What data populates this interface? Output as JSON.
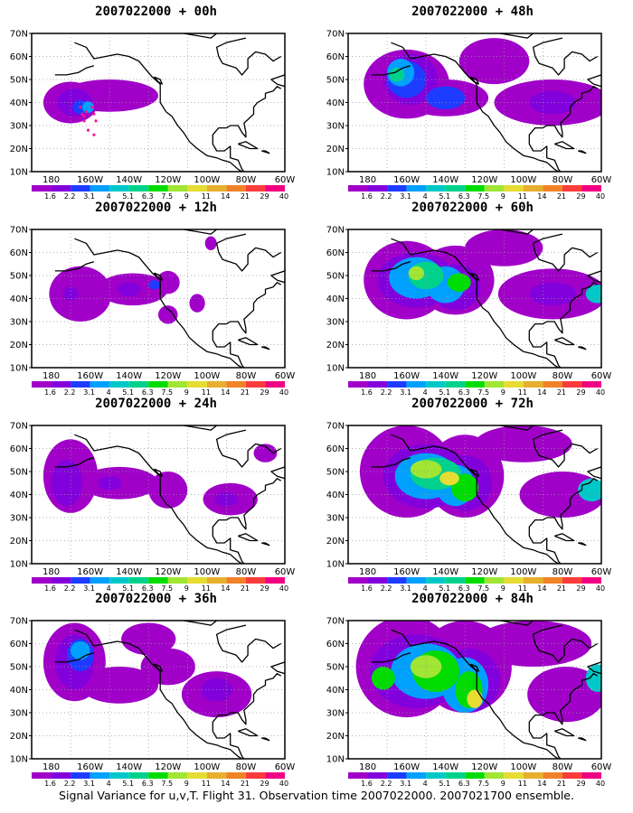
{
  "footer": "Signal Variance for u,v,T. Flight 31. Observation time 2007022000. 2007021700 ensemble.",
  "colors": {
    "palette": [
      "#a000c8",
      "#8200dc",
      "#1e3cff",
      "#00a0ff",
      "#00c8c8",
      "#00d28c",
      "#00dc00",
      "#a0e632",
      "#e6dc32",
      "#e6af2d",
      "#f08228",
      "#fa3c3c",
      "#f00082"
    ],
    "land_outline": "#000000",
    "grid": "#9a9a9a",
    "flight_track": "#ff1493"
  },
  "chart_data": [
    {
      "type": "contour_map",
      "title": "2007022000 + 00h",
      "x_ticks": [
        "180",
        "160W",
        "140W",
        "120W",
        "100W",
        "80W",
        "60W"
      ],
      "y_ticks": [
        "10N",
        "20N",
        "30N",
        "40N",
        "50N",
        "60N",
        "70N"
      ],
      "colorbar_labels": [
        "1.6",
        "2.2",
        "3.1",
        "4",
        "5.1",
        "6.3",
        "7.5",
        "9",
        "11",
        "14",
        "21",
        "29",
        "40"
      ],
      "grid": true,
      "blobs": [
        {
          "lon": -170,
          "lat": 40,
          "rx": 14,
          "ry": 9,
          "level": 0
        },
        {
          "lon": -150,
          "lat": 43,
          "rx": 25,
          "ry": 7,
          "level": 0
        },
        {
          "lon": -168,
          "lat": 40,
          "rx": 9,
          "ry": 6,
          "level": 1
        },
        {
          "lon": -165,
          "lat": 38,
          "rx": 4,
          "ry": 3,
          "level": 2
        },
        {
          "lon": -161,
          "lat": 38,
          "rx": 3,
          "ry": 2.5,
          "level": 3
        }
      ],
      "track": [
        [
          -165,
          38
        ],
        [
          -164,
          35
        ],
        [
          -163,
          32
        ],
        [
          -161,
          28
        ],
        [
          -158,
          26
        ],
        [
          -163,
          34
        ],
        [
          -162,
          36
        ],
        [
          -159,
          38
        ],
        [
          -158,
          35
        ],
        [
          -157,
          32
        ]
      ]
    },
    {
      "type": "contour_map",
      "title": "2007022000 + 48h",
      "x_ticks": [
        "180",
        "160W",
        "140W",
        "120W",
        "100W",
        "80W",
        "60W"
      ],
      "y_ticks": [
        "10N",
        "20N",
        "30N",
        "40N",
        "50N",
        "60N",
        "70N"
      ],
      "colorbar_labels": [
        "1.6",
        "2.2",
        "3.1",
        "4",
        "5.1",
        "6.3",
        "7.5",
        "9",
        "11",
        "14",
        "21",
        "29",
        "40"
      ],
      "grid": true,
      "blobs": [
        {
          "lon": -160,
          "lat": 48,
          "rx": 22,
          "ry": 15,
          "level": 0
        },
        {
          "lon": -115,
          "lat": 58,
          "rx": 18,
          "ry": 10,
          "level": 0
        },
        {
          "lon": -85,
          "lat": 40,
          "rx": 30,
          "ry": 10,
          "level": 0
        },
        {
          "lon": -140,
          "lat": 42,
          "rx": 22,
          "ry": 8,
          "level": 0
        },
        {
          "lon": -158,
          "lat": 50,
          "rx": 14,
          "ry": 11,
          "level": 1
        },
        {
          "lon": -160,
          "lat": 50,
          "rx": 10,
          "ry": 8,
          "level": 2
        },
        {
          "lon": -163,
          "lat": 53,
          "rx": 7,
          "ry": 6,
          "level": 3
        },
        {
          "lon": -165,
          "lat": 52,
          "rx": 4,
          "ry": 3,
          "level": 5
        },
        {
          "lon": -140,
          "lat": 42,
          "rx": 10,
          "ry": 5,
          "level": 2
        },
        {
          "lon": -85,
          "lat": 40,
          "rx": 12,
          "ry": 5,
          "level": 1
        }
      ]
    },
    {
      "type": "contour_map",
      "title": "2007022000 + 12h",
      "x_ticks": [
        "180",
        "160W",
        "140W",
        "120W",
        "100W",
        "80W",
        "60W"
      ],
      "y_ticks": [
        "10N",
        "20N",
        "30N",
        "40N",
        "50N",
        "60N",
        "70N"
      ],
      "colorbar_labels": [
        "1.6",
        "2.2",
        "3.1",
        "4",
        "5.1",
        "6.3",
        "7.5",
        "9",
        "11",
        "14",
        "21",
        "29",
        "40"
      ],
      "grid": true,
      "blobs": [
        {
          "lon": -165,
          "lat": 42,
          "rx": 16,
          "ry": 12,
          "level": 0
        },
        {
          "lon": -138,
          "lat": 44,
          "rx": 18,
          "ry": 7,
          "level": 0
        },
        {
          "lon": -120,
          "lat": 47,
          "rx": 6,
          "ry": 5,
          "level": 0
        },
        {
          "lon": -105,
          "lat": 38,
          "rx": 4,
          "ry": 4,
          "level": 0
        },
        {
          "lon": -120,
          "lat": 33,
          "rx": 5,
          "ry": 4,
          "level": 0
        },
        {
          "lon": -98,
          "lat": 64,
          "rx": 3,
          "ry": 3,
          "level": 0
        },
        {
          "lon": -170,
          "lat": 42,
          "rx": 4,
          "ry": 3,
          "level": 1
        },
        {
          "lon": -140,
          "lat": 44,
          "rx": 6,
          "ry": 3,
          "level": 1
        },
        {
          "lon": -127,
          "lat": 46,
          "rx": 3,
          "ry": 2,
          "level": 2
        }
      ]
    },
    {
      "type": "contour_map",
      "title": "2007022000 + 60h",
      "x_ticks": [
        "180",
        "160W",
        "140W",
        "120W",
        "100W",
        "80W",
        "60W"
      ],
      "y_ticks": [
        "10N",
        "20N",
        "30N",
        "40N",
        "50N",
        "60N",
        "70N"
      ],
      "colorbar_labels": [
        "1.6",
        "2.2",
        "3.1",
        "4",
        "5.1",
        "6.3",
        "7.5",
        "9",
        "11",
        "14",
        "21",
        "29",
        "40"
      ],
      "grid": true,
      "blobs": [
        {
          "lon": -160,
          "lat": 48,
          "rx": 22,
          "ry": 17,
          "level": 0
        },
        {
          "lon": -135,
          "lat": 48,
          "rx": 20,
          "ry": 15,
          "level": 0
        },
        {
          "lon": -110,
          "lat": 62,
          "rx": 20,
          "ry": 8,
          "level": 0
        },
        {
          "lon": -85,
          "lat": 42,
          "rx": 28,
          "ry": 11,
          "level": 0
        },
        {
          "lon": -155,
          "lat": 48,
          "rx": 20,
          "ry": 12,
          "level": 1
        },
        {
          "lon": -135,
          "lat": 45,
          "rx": 13,
          "ry": 10,
          "level": 1
        },
        {
          "lon": -155,
          "lat": 49,
          "rx": 14,
          "ry": 9,
          "level": 3
        },
        {
          "lon": -140,
          "lat": 46,
          "rx": 10,
          "ry": 8,
          "level": 3
        },
        {
          "lon": -150,
          "lat": 50,
          "rx": 9,
          "ry": 6,
          "level": 5
        },
        {
          "lon": -133,
          "lat": 47,
          "rx": 6,
          "ry": 4,
          "level": 6
        },
        {
          "lon": -155,
          "lat": 51,
          "rx": 4,
          "ry": 3,
          "level": 7
        },
        {
          "lon": -85,
          "lat": 42,
          "rx": 12,
          "ry": 5,
          "level": 1
        },
        {
          "lon": -62,
          "lat": 42,
          "rx": 6,
          "ry": 4,
          "level": 4
        }
      ]
    },
    {
      "type": "contour_map",
      "title": "2007022000 + 24h",
      "x_ticks": [
        "180",
        "160W",
        "140W",
        "120W",
        "100W",
        "80W",
        "60W"
      ],
      "y_ticks": [
        "10N",
        "20N",
        "30N",
        "40N",
        "50N",
        "60N",
        "70N"
      ],
      "colorbar_labels": [
        "1.6",
        "2.2",
        "3.1",
        "4",
        "5.1",
        "6.3",
        "7.5",
        "9",
        "11",
        "14",
        "21",
        "29",
        "40"
      ],
      "grid": true,
      "blobs": [
        {
          "lon": -170,
          "lat": 48,
          "rx": 14,
          "ry": 16,
          "level": 0
        },
        {
          "lon": -145,
          "lat": 45,
          "rx": 20,
          "ry": 7,
          "level": 0
        },
        {
          "lon": -120,
          "lat": 42,
          "rx": 10,
          "ry": 8,
          "level": 0
        },
        {
          "lon": -88,
          "lat": 38,
          "rx": 14,
          "ry": 7,
          "level": 0
        },
        {
          "lon": -70,
          "lat": 58,
          "rx": 6,
          "ry": 4,
          "level": 0
        },
        {
          "lon": -172,
          "lat": 45,
          "rx": 8,
          "ry": 10,
          "level": 1
        },
        {
          "lon": -150,
          "lat": 45,
          "rx": 6,
          "ry": 3,
          "level": 1
        },
        {
          "lon": -90,
          "lat": 38,
          "rx": 6,
          "ry": 3,
          "level": 1
        }
      ]
    },
    {
      "type": "contour_map",
      "title": "2007022000 + 72h",
      "x_ticks": [
        "180",
        "160W",
        "140W",
        "120W",
        "100W",
        "80W",
        "60W"
      ],
      "y_ticks": [
        "10N",
        "20N",
        "30N",
        "40N",
        "50N",
        "60N",
        "70N"
      ],
      "colorbar_labels": [
        "1.6",
        "2.2",
        "3.1",
        "4",
        "5.1",
        "6.3",
        "7.5",
        "9",
        "11",
        "14",
        "21",
        "29",
        "40"
      ],
      "grid": true,
      "blobs": [
        {
          "lon": -160,
          "lat": 50,
          "rx": 24,
          "ry": 20,
          "level": 0
        },
        {
          "lon": -130,
          "lat": 48,
          "rx": 20,
          "ry": 18,
          "level": 0
        },
        {
          "lon": -100,
          "lat": 62,
          "rx": 25,
          "ry": 8,
          "level": 0
        },
        {
          "lon": -80,
          "lat": 40,
          "rx": 22,
          "ry": 10,
          "level": 0
        },
        {
          "lon": -150,
          "lat": 48,
          "rx": 22,
          "ry": 14,
          "level": 1
        },
        {
          "lon": -130,
          "lat": 45,
          "rx": 14,
          "ry": 12,
          "level": 1
        },
        {
          "lon": -150,
          "lat": 48,
          "rx": 16,
          "ry": 10,
          "level": 3
        },
        {
          "lon": -135,
          "lat": 44,
          "rx": 10,
          "ry": 9,
          "level": 3
        },
        {
          "lon": -145,
          "lat": 49,
          "rx": 13,
          "ry": 7,
          "level": 5
        },
        {
          "lon": -130,
          "lat": 43,
          "rx": 7,
          "ry": 6,
          "level": 6
        },
        {
          "lon": -150,
          "lat": 51,
          "rx": 8,
          "ry": 4,
          "level": 7
        },
        {
          "lon": -138,
          "lat": 47,
          "rx": 5,
          "ry": 3,
          "level": 8
        },
        {
          "lon": -65,
          "lat": 42,
          "rx": 7,
          "ry": 5,
          "level": 4
        }
      ]
    },
    {
      "type": "contour_map",
      "title": "2007022000 + 36h",
      "x_ticks": [
        "180",
        "160W",
        "140W",
        "120W",
        "100W",
        "80W",
        "60W"
      ],
      "y_ticks": [
        "10N",
        "20N",
        "30N",
        "40N",
        "50N",
        "60N",
        "70N"
      ],
      "colorbar_labels": [
        "1.6",
        "2.2",
        "3.1",
        "4",
        "5.1",
        "6.3",
        "7.5",
        "9",
        "11",
        "14",
        "21",
        "29",
        "40"
      ],
      "grid": true,
      "blobs": [
        {
          "lon": -168,
          "lat": 52,
          "rx": 16,
          "ry": 17,
          "level": 0
        },
        {
          "lon": -145,
          "lat": 42,
          "rx": 20,
          "ry": 8,
          "level": 0
        },
        {
          "lon": -120,
          "lat": 50,
          "rx": 14,
          "ry": 8,
          "level": 0
        },
        {
          "lon": -95,
          "lat": 38,
          "rx": 18,
          "ry": 10,
          "level": 0
        },
        {
          "lon": -130,
          "lat": 62,
          "rx": 14,
          "ry": 7,
          "level": 0
        },
        {
          "lon": -168,
          "lat": 52,
          "rx": 10,
          "ry": 12,
          "level": 1
        },
        {
          "lon": -165,
          "lat": 55,
          "rx": 7,
          "ry": 7,
          "level": 2
        },
        {
          "lon": -165,
          "lat": 57,
          "rx": 5,
          "ry": 4,
          "level": 3
        },
        {
          "lon": -95,
          "lat": 40,
          "rx": 8,
          "ry": 5,
          "level": 1
        }
      ]
    },
    {
      "type": "contour_map",
      "title": "2007022000 + 84h",
      "x_ticks": [
        "180",
        "160W",
        "140W",
        "120W",
        "100W",
        "80W",
        "60W"
      ],
      "y_ticks": [
        "10N",
        "20N",
        "30N",
        "40N",
        "50N",
        "60N",
        "70N"
      ],
      "colorbar_labels": [
        "1.6",
        "2.2",
        "3.1",
        "4",
        "5.1",
        "6.3",
        "7.5",
        "9",
        "11",
        "14",
        "21",
        "29",
        "40"
      ],
      "grid": true,
      "blobs": [
        {
          "lon": -160,
          "lat": 50,
          "rx": 26,
          "ry": 22,
          "level": 0
        },
        {
          "lon": -130,
          "lat": 50,
          "rx": 24,
          "ry": 20,
          "level": 0
        },
        {
          "lon": -95,
          "lat": 60,
          "rx": 30,
          "ry": 10,
          "level": 0
        },
        {
          "lon": -78,
          "lat": 38,
          "rx": 20,
          "ry": 12,
          "level": 0
        },
        {
          "lon": -155,
          "lat": 48,
          "rx": 24,
          "ry": 16,
          "level": 1
        },
        {
          "lon": -128,
          "lat": 44,
          "rx": 16,
          "ry": 14,
          "level": 1
        },
        {
          "lon": -150,
          "lat": 48,
          "rx": 18,
          "ry": 12,
          "level": 3
        },
        {
          "lon": -130,
          "lat": 42,
          "rx": 12,
          "ry": 12,
          "level": 3
        },
        {
          "lon": -172,
          "lat": 45,
          "rx": 6,
          "ry": 5,
          "level": 6
        },
        {
          "lon": -145,
          "lat": 48,
          "rx": 12,
          "ry": 9,
          "level": 6
        },
        {
          "lon": -128,
          "lat": 40,
          "rx": 7,
          "ry": 8,
          "level": 6
        },
        {
          "lon": -150,
          "lat": 50,
          "rx": 8,
          "ry": 5,
          "level": 7
        },
        {
          "lon": -125,
          "lat": 36,
          "rx": 4,
          "ry": 4,
          "level": 8
        },
        {
          "lon": -62,
          "lat": 45,
          "rx": 6,
          "ry": 6,
          "level": 4
        }
      ]
    }
  ]
}
